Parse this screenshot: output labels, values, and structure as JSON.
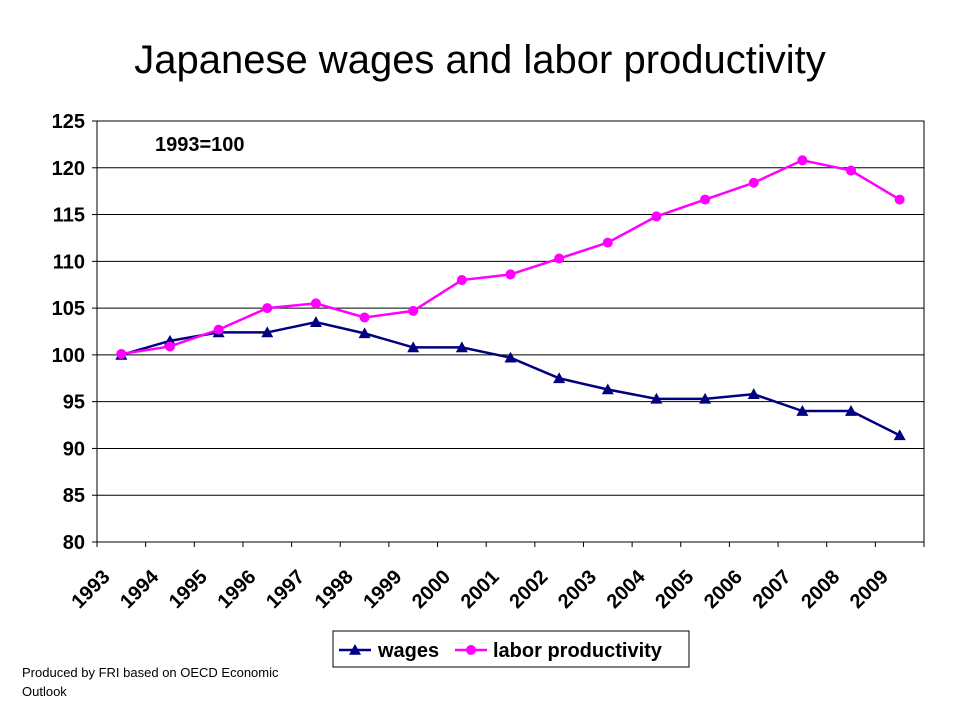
{
  "chart_data": {
    "type": "line",
    "title": "Japanese wages and labor productivity",
    "annotation": "1993=100",
    "source": "Produced by FRI based on OECD Economic Outlook",
    "x": [
      "1993",
      "1994",
      "1995",
      "1996",
      "1997",
      "1998",
      "1999",
      "2000",
      "2001",
      "2002",
      "2003",
      "2004",
      "2005",
      "2006",
      "2007",
      "2008",
      "2009"
    ],
    "ylim": [
      80,
      125
    ],
    "yticks": [
      80,
      85,
      90,
      95,
      100,
      105,
      110,
      115,
      120,
      125
    ],
    "grid": true,
    "legend_position": "bottom",
    "series": [
      {
        "name": "wages",
        "color": "#000080",
        "marker": "triangle",
        "values": [
          100.0,
          101.5,
          102.4,
          102.4,
          103.5,
          102.3,
          100.8,
          100.8,
          99.7,
          97.5,
          96.3,
          95.3,
          95.3,
          95.8,
          94.0,
          94.0,
          91.4
        ]
      },
      {
        "name": "labor productivity",
        "color": "#ff00ff",
        "marker": "circle",
        "values": [
          100.1,
          100.9,
          102.7,
          105.0,
          105.5,
          104.0,
          104.7,
          108.0,
          108.6,
          110.3,
          112.0,
          114.8,
          116.6,
          118.4,
          120.8,
          119.7,
          116.6
        ]
      }
    ]
  }
}
